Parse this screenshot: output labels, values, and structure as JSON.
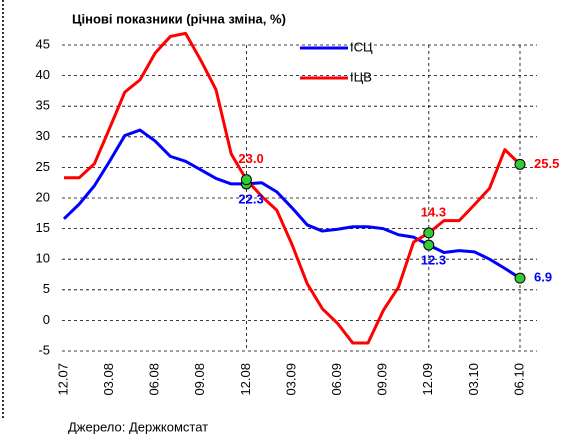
{
  "chart_data": {
    "type": "line",
    "title": "Цінові показники (річна зміна, %)",
    "source": "Джерело: Держкомстат",
    "categories": [
      "12.07",
      null,
      null,
      "03.08",
      null,
      null,
      "06.08",
      null,
      null,
      "09.08",
      null,
      null,
      "12.08",
      null,
      null,
      "03.09",
      null,
      null,
      "06.09",
      null,
      null,
      "09.09",
      null,
      null,
      "12.09",
      null,
      null,
      "03.10",
      null,
      null,
      "06.10"
    ],
    "series": [
      {
        "name": "ІСЦ",
        "color": "#0000ff",
        "values": [
          16.6,
          19,
          22,
          26,
          30.2,
          31.1,
          29.3,
          26.8,
          26.0,
          24.6,
          23.2,
          22.3,
          22.3,
          22.5,
          21.0,
          18.4,
          15.6,
          14.6,
          14.9,
          15.3,
          15.3,
          15.0,
          14.0,
          13.6,
          12.3,
          11.1,
          11.4,
          11.2,
          10.0,
          8.5,
          6.9
        ],
        "value_labels": [
          null,
          null,
          null,
          null,
          null,
          null,
          null,
          null,
          null,
          null,
          null,
          null,
          "22.3",
          null,
          null,
          null,
          null,
          null,
          null,
          null,
          null,
          null,
          null,
          null,
          "12.3",
          null,
          null,
          null,
          null,
          null,
          "6.9"
        ]
      },
      {
        "name": "ІЦВ",
        "color": "#ff0000",
        "values": [
          23.3,
          23.3,
          25.6,
          31.4,
          37.3,
          39.3,
          43.7,
          46.4,
          46.9,
          42.5,
          37.7,
          27.2,
          23.0,
          20.3,
          18.0,
          12.4,
          6.0,
          1.9,
          -0.5,
          -3.7,
          -3.7,
          1.6,
          5.4,
          12.8,
          14.3,
          16.3,
          16.3,
          18.9,
          21.6,
          27.9,
          25.5
        ],
        "value_labels": [
          null,
          null,
          null,
          null,
          null,
          null,
          null,
          null,
          null,
          null,
          null,
          null,
          "23.0",
          null,
          null,
          null,
          null,
          null,
          null,
          null,
          null,
          null,
          null,
          null,
          "14.3",
          null,
          null,
          null,
          null,
          null,
          "25.5"
        ]
      }
    ],
    "ylim": [
      -5,
      45
    ],
    "yticks": [
      -5,
      0,
      5,
      10,
      15,
      20,
      25,
      30,
      35,
      40,
      45
    ],
    "grid": true,
    "legend": "top-right"
  }
}
